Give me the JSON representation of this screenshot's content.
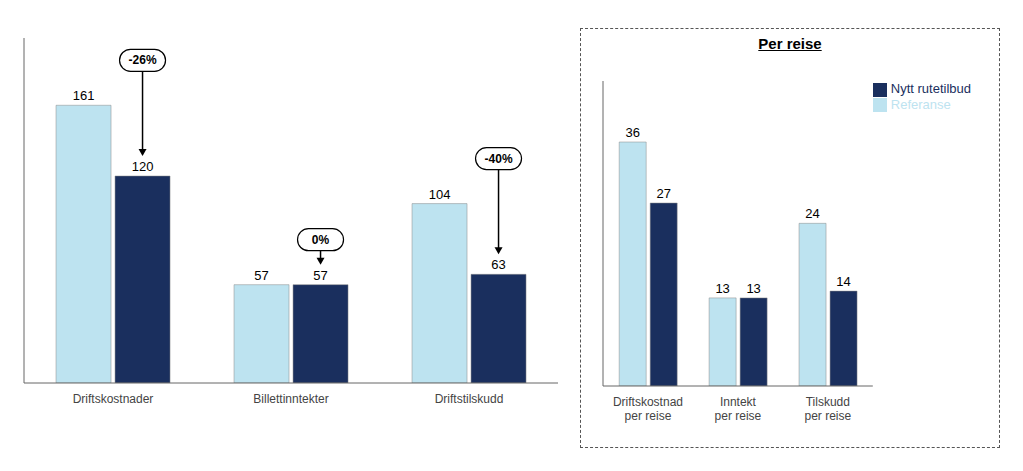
{
  "chart_data": [
    {
      "type": "bar",
      "categories": [
        "Driftskostnader",
        "Billettinntekter",
        "Driftstilskudd"
      ],
      "series": [
        {
          "name": "Referanse",
          "color": "#bde3f0",
          "values": [
            161,
            57,
            104
          ]
        },
        {
          "name": "Nytt rutetilbud",
          "color": "#1a2f5e",
          "values": [
            120,
            57,
            63
          ]
        }
      ],
      "ylim": [
        0,
        200
      ],
      "data_labels": true,
      "tick_labels": "x",
      "grid": false,
      "annotations": [
        "-26%",
        "0%",
        "-40%"
      ]
    },
    {
      "type": "bar",
      "title": "Per reise",
      "categories": [
        "Driftskostnad\nper reise",
        "Inntekt\nper reise",
        "Tilskudd\nper reise"
      ],
      "series": [
        {
          "name": "Referanse",
          "color": "#bde3f0",
          "values": [
            36,
            13,
            24
          ]
        },
        {
          "name": "Nytt rutetilbud",
          "color": "#1a2f5e",
          "values": [
            27,
            13,
            14
          ]
        }
      ],
      "ylim": [
        0,
        45
      ],
      "data_labels": true,
      "tick_labels": "x",
      "grid": false,
      "legend": "upper right"
    }
  ]
}
